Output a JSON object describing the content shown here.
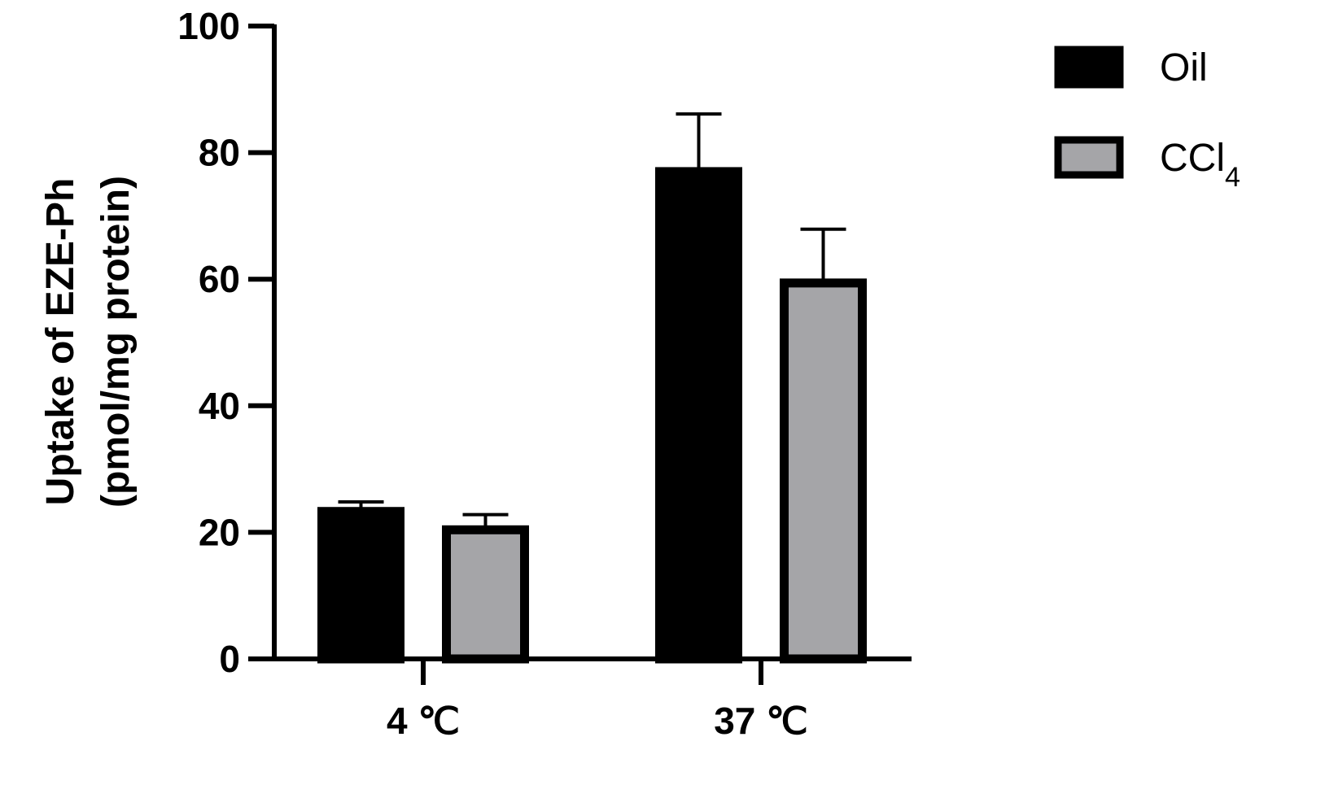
{
  "chart_data": {
    "type": "bar",
    "categories": [
      "4 ℃",
      "37 ℃"
    ],
    "series": [
      {
        "name": "Oil",
        "values": [
          23.3,
          77.0
        ],
        "errors": [
          1.5,
          9.1
        ],
        "color": "#000000"
      },
      {
        "name": "CCl4",
        "values": [
          20.4,
          59.4
        ],
        "errors": [
          2.4,
          8.5
        ],
        "color": "#a5a5a8"
      }
    ],
    "legend": {
      "items": [
        {
          "name": "Oil",
          "label": "Oil",
          "sub": ""
        },
        {
          "name": "CCl4",
          "label": "CCl",
          "sub": "4"
        }
      ],
      "placement": "top-right"
    },
    "ylabel_lines": [
      "Uptake of EZE-Ph",
      "(pmol/mg protein)"
    ],
    "xlabel": "",
    "ylim": [
      0,
      100
    ],
    "yticks": [
      0,
      20,
      40,
      60,
      80,
      100
    ],
    "grid": false,
    "title": ""
  }
}
